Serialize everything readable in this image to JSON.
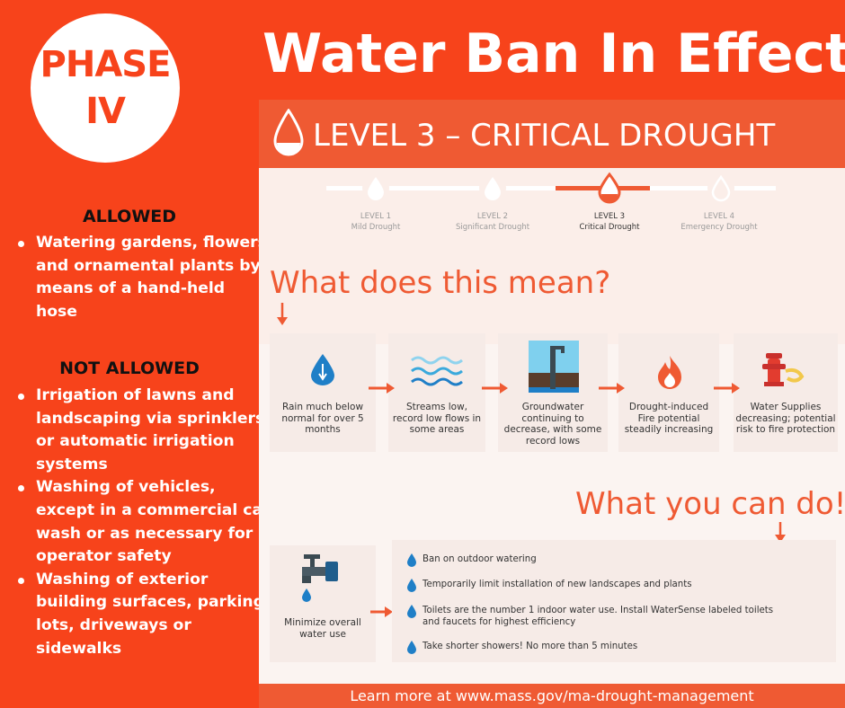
{
  "phase": {
    "line1": "PHASE",
    "line2": "IV"
  },
  "title": "Water Ban In Effect",
  "rules": {
    "allowed_heading": "ALLOWED",
    "allowed_items": [
      "Watering gardens, flowers and ornamental plants by means of a hand-held hose"
    ],
    "not_allowed_heading": "NOT ALLOWED",
    "not_allowed_items": [
      "Irrigation of lawns and landscaping via sprinklers or automatic irrigation systems",
      "Washing of vehicles, except in a commercial car wash or as necessary for operator safety",
      "Washing of exterior building surfaces, parking lots, driveways or sidewalks"
    ]
  },
  "infographic": {
    "header": "LEVEL 3 – CRITICAL DROUGHT",
    "levels": [
      {
        "label": "LEVEL 1",
        "name": "Mild Drought"
      },
      {
        "label": "LEVEL 2",
        "name": "Significant Drought"
      },
      {
        "label": "LEVEL 3",
        "name": "Critical Drought"
      },
      {
        "label": "LEVEL 4",
        "name": "Emergency Drought"
      }
    ],
    "active_level": 3,
    "meaning_heading": "What does this mean?",
    "meaning_steps": [
      {
        "text": "Rain much below normal for over 5 months",
        "icon": "raindrop-icon"
      },
      {
        "text": "Streams low, record low flows in some areas",
        "icon": "water-waves-icon"
      },
      {
        "text": "Groundwater continuing to decrease, with some record lows",
        "icon": "groundwater-pipe-icon"
      },
      {
        "text": "Drought-induced Fire potential steadily increasing",
        "icon": "flame-icon"
      },
      {
        "text": "Water Supplies decreasing; potential risk to fire protection",
        "icon": "fire-hydrant-icon"
      }
    ],
    "action_heading": "What you can do!",
    "action_summary": "Minimize overall water use",
    "recommendations": [
      "Ban on outdoor watering",
      "Temporarily limit installation of new landscapes and plants",
      "Toilets are the number 1 indoor water use. Install WaterSense labeled toilets and faucets for highest efficiency",
      "Take shorter showers!  No more than 5 minutes"
    ],
    "footer": "Learn more at www.mass.gov/ma-drought-management"
  },
  "colors": {
    "background": "#f7431b",
    "accent": "#ef5a33",
    "drop_blue": "#1f7fc7"
  }
}
